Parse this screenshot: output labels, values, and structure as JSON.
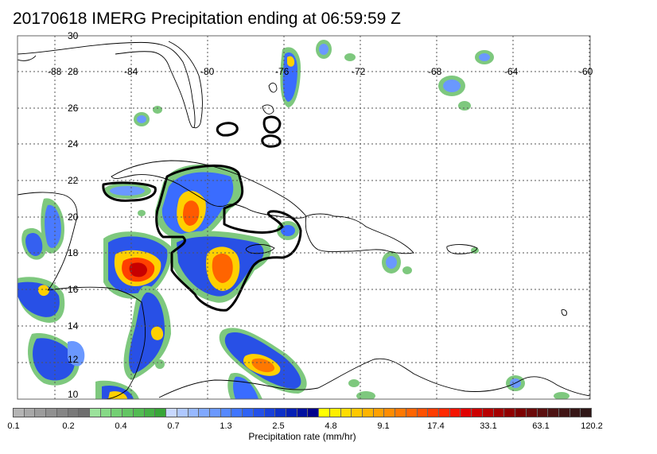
{
  "title": "20170618 IMERG Precipitation ending at 06:59:59 Z",
  "map": {
    "lat_labels": [
      "30",
      "28",
      "26",
      "24",
      "22",
      "20",
      "18",
      "16",
      "14",
      "12",
      "10"
    ],
    "lon_labels": [
      "-88",
      "-84",
      "-80",
      "-76",
      "-72",
      "-68",
      "-64",
      "-60"
    ],
    "lat_range": [
      10,
      30
    ],
    "lon_range": [
      -89,
      -59.6
    ],
    "grid": true
  },
  "colorbar": {
    "label": "Precipitation rate (mm/hr)",
    "tick_labels": [
      "0.1",
      "0.2",
      "0.4",
      "0.7",
      "1.3",
      "2.5",
      "4.8",
      "9.1",
      "17.4",
      "33.1",
      "63.1",
      "120.2"
    ],
    "colors": [
      "#b4b4b4",
      "#a8a8a8",
      "#9c9c9c",
      "#909090",
      "#858585",
      "#797979",
      "#6e6e6e",
      "#9be29b",
      "#86d986",
      "#73cf73",
      "#62c562",
      "#52bb52",
      "#44b044",
      "#37a537",
      "#c8d8ff",
      "#afc8ff",
      "#97b8ff",
      "#80a8ff",
      "#6a98ff",
      "#5588ff",
      "#3f75ff",
      "#2e62f5",
      "#2250e8",
      "#1740da",
      "#0c30c8",
      "#0520b5",
      "#0010a0",
      "#00008c",
      "#ffff00",
      "#ffee00",
      "#ffdc00",
      "#ffc800",
      "#ffb400",
      "#ffa000",
      "#ff8c00",
      "#ff7800",
      "#ff6400",
      "#ff5000",
      "#ff3c00",
      "#ff2800",
      "#f51400",
      "#e00000",
      "#cc0000",
      "#b80000",
      "#a40000",
      "#900000",
      "#7c0000",
      "#6b0a0a",
      "#5a0f0f",
      "#4c1212",
      "#401414",
      "#361515",
      "#2e1616"
    ]
  }
}
